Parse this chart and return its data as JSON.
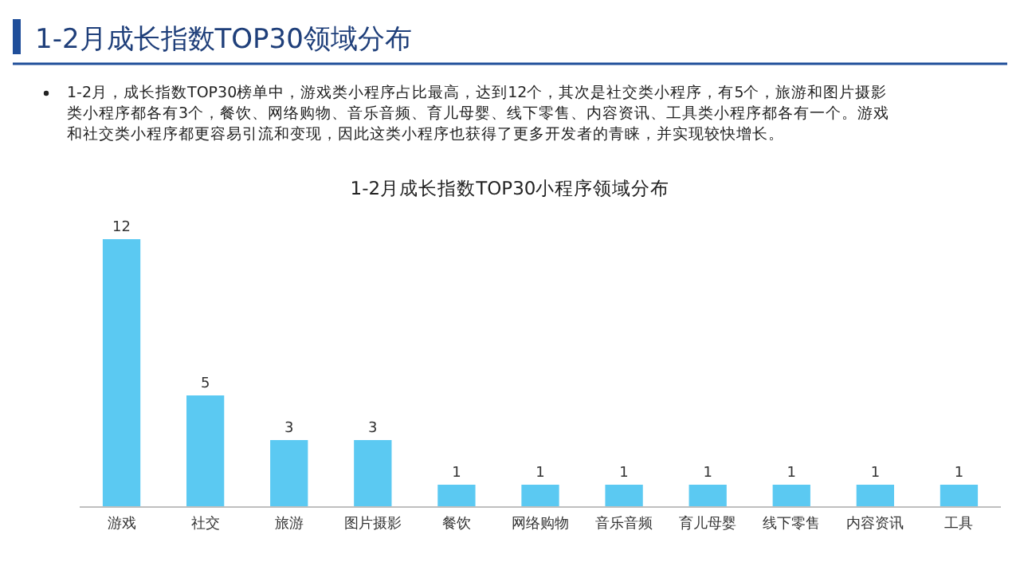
{
  "chart_data": {
    "type": "bar",
    "title": "1-2月成长指数TOP30领域分布",
    "subtitle": "1-2月成长指数TOP30小程序领域分布",
    "annotations": [
      "1-2月，成长指数TOP30榜单中，游戏类小程序占比最高，达到12个，其次是社交类小程序，有5个，旅游和图片摄影类小程序都各有3个，餐饮、网络购物、音乐音频、育儿母婴、线下零售、内容资讯、工具类小程序都各有一个。游戏和社交类小程序都更容易引流和变现，因此这类小程序也获得了更多开发者的青睐，并实现较快增长。"
    ],
    "categories": [
      "游戏",
      "社交",
      "旅游",
      "图片摄影",
      "餐饮",
      "网络购物",
      "音乐音频",
      "育儿母婴",
      "线下零售",
      "内容资讯",
      "工具"
    ],
    "values": [
      12,
      5,
      3,
      3,
      1,
      1,
      1,
      1,
      1,
      1,
      1
    ],
    "color": "#5bc9f2",
    "data_labels": true
  }
}
